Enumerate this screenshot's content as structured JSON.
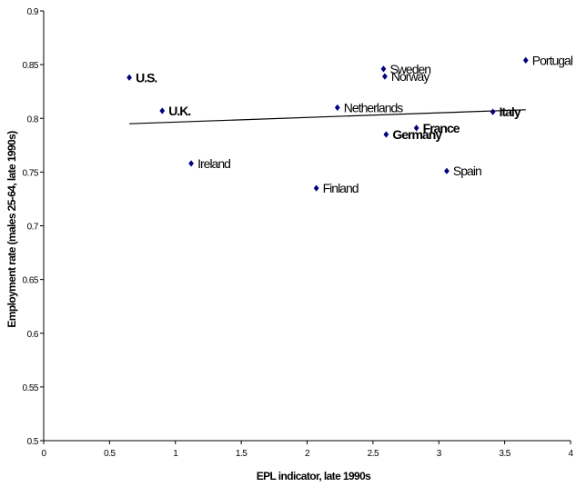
{
  "chart_data": {
    "type": "scatter",
    "xlabel": "EPL indicator, late 1990s",
    "ylabel": "Employment rate (males 25-64, late 1990s)",
    "xlim": [
      0,
      4
    ],
    "ylim": [
      0.5,
      0.9
    ],
    "x_ticks": [
      "0",
      "0.5",
      "1",
      "1.5",
      "2",
      "2.5",
      "3",
      "3.5",
      "4"
    ],
    "y_ticks": [
      "0.5",
      "0.55",
      "0.6",
      "0.65",
      "0.7",
      "0.75",
      "0.8",
      "0.85",
      "0.9"
    ],
    "grid": false,
    "marker_color": "#000080",
    "points": [
      {
        "label": "U.S.",
        "x": 0.65,
        "y": 0.838,
        "bold": true
      },
      {
        "label": "U.K.",
        "x": 0.9,
        "y": 0.807,
        "bold": true
      },
      {
        "label": "Ireland",
        "x": 1.12,
        "y": 0.758,
        "bold": false
      },
      {
        "label": "Finland",
        "x": 2.07,
        "y": 0.735,
        "bold": false
      },
      {
        "label": "Netherlands",
        "x": 2.23,
        "y": 0.81,
        "bold": false
      },
      {
        "label": "Sweden",
        "x": 2.58,
        "y": 0.846,
        "bold": false
      },
      {
        "label": "Norway",
        "x": 2.59,
        "y": 0.839,
        "bold": false
      },
      {
        "label": "Germany",
        "x": 2.6,
        "y": 0.785,
        "bold": true
      },
      {
        "label": "France",
        "x": 2.83,
        "y": 0.791,
        "bold": true
      },
      {
        "label": "Spain",
        "x": 3.06,
        "y": 0.751,
        "bold": false
      },
      {
        "label": "Italy",
        "x": 3.41,
        "y": 0.806,
        "bold": true
      },
      {
        "label": "Portugal",
        "x": 3.66,
        "y": 0.854,
        "bold": false
      }
    ],
    "trendline": {
      "x": [
        0.65,
        3.66
      ],
      "y": [
        0.795,
        0.808
      ]
    }
  }
}
